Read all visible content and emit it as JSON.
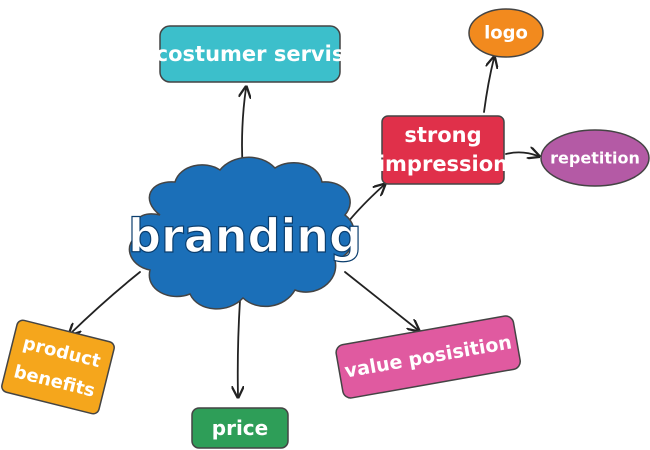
{
  "diagram": {
    "central": "branding",
    "nodes": {
      "customer_service": "costumer servis",
      "strong_impression_line1": "strong",
      "strong_impression_line2": "impression",
      "logo": "logo",
      "repetition": "repetition",
      "value_position": "value posisition",
      "product_benefits_line1": "product",
      "product_benefits_line2": "benefits",
      "price": "price"
    },
    "colors": {
      "central_cloud": "#1b6fb8",
      "customer_service": "#3cbfcb",
      "strong_impression": "#e0304a",
      "logo": "#f28a1e",
      "repetition": "#b45aa5",
      "value_position": "#e05aa0",
      "product_benefits": "#f5a61c",
      "price": "#2e9e58"
    }
  }
}
